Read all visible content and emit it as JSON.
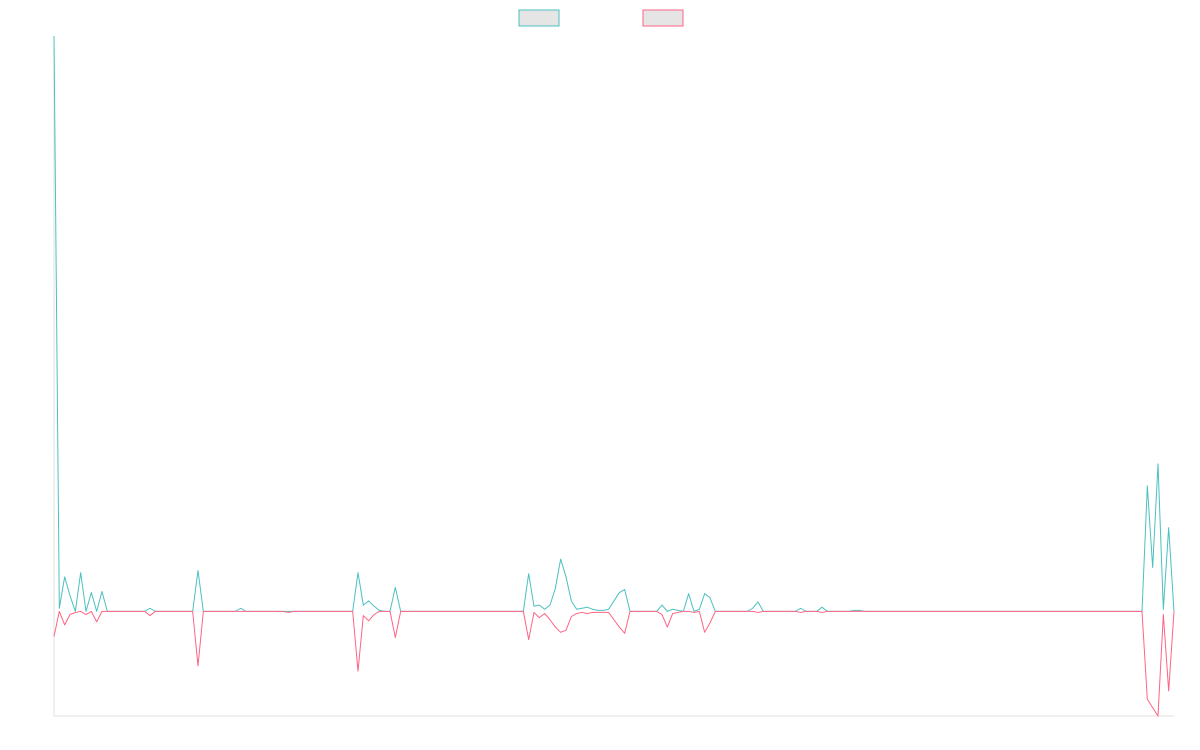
{
  "chart_data": {
    "type": "line",
    "categories": [
      null,
      null,
      null,
      null,
      null,
      null,
      null,
      null,
      null,
      null,
      null,
      null,
      null,
      null,
      null,
      null,
      null,
      null,
      null,
      null,
      null,
      null,
      null,
      null,
      null,
      null,
      null,
      null,
      null,
      null,
      null,
      null,
      null,
      null,
      null,
      null,
      null,
      null,
      null,
      null,
      null,
      null,
      null,
      null,
      null,
      null,
      null,
      null,
      null,
      null,
      null,
      null,
      null,
      null,
      null,
      null,
      null,
      null,
      null,
      null,
      null,
      null,
      null,
      null,
      null,
      null,
      null,
      null,
      null,
      null,
      null,
      null,
      null,
      null,
      null,
      null,
      null,
      null,
      null,
      null,
      null,
      null,
      null,
      null,
      null,
      null,
      null,
      null,
      null,
      null,
      null,
      null,
      null,
      null,
      null,
      null,
      null,
      null,
      null,
      null,
      null,
      null,
      null,
      null,
      null,
      null,
      null,
      null,
      null,
      null,
      null,
      null,
      null,
      null,
      null,
      null,
      null,
      null,
      null,
      null,
      null,
      null,
      null,
      null,
      null,
      null,
      null,
      null,
      null,
      null,
      null,
      null,
      null,
      null,
      null,
      null,
      null,
      null,
      null,
      null,
      null,
      null,
      null,
      null,
      null,
      null,
      null,
      null,
      null,
      null,
      null,
      null,
      null,
      null,
      null,
      null,
      null,
      null,
      null,
      null,
      null,
      null,
      null,
      null,
      null,
      null,
      null,
      null,
      null,
      null,
      null,
      null,
      null,
      null,
      null,
      null,
      null,
      null,
      null,
      null,
      null,
      null,
      null,
      null,
      null,
      null,
      null,
      null,
      null,
      null,
      null,
      null,
      null,
      null,
      null,
      null,
      null,
      null,
      null,
      null,
      null,
      null,
      null,
      null,
      null,
      null,
      null,
      null,
      null,
      null,
      null
    ],
    "series": [
      {
        "color": "#4bc0c0",
        "values": [
          5.5,
          0.03,
          0.33,
          0.15,
          0,
          0.37,
          0,
          0.18,
          0,
          0.19,
          0,
          0,
          0,
          0,
          0,
          0,
          0,
          0,
          0.03,
          0,
          0,
          0,
          0,
          0,
          0,
          0,
          0,
          0.39,
          0,
          0,
          0,
          0,
          0,
          0,
          0,
          0.03,
          0,
          0,
          0,
          0,
          0,
          0,
          0,
          0,
          0,
          0,
          0,
          0,
          0,
          0,
          0,
          0,
          0,
          0,
          0,
          0,
          0,
          0.37,
          0.06,
          0.1,
          0.05,
          0.01,
          0,
          0,
          0.23,
          0,
          0,
          0,
          0,
          0,
          0,
          0,
          0,
          0,
          0,
          0,
          0,
          0,
          0,
          0,
          0,
          0,
          0,
          0,
          0,
          0,
          0,
          0,
          0,
          0.36,
          0.05,
          0.06,
          0.02,
          0.06,
          0.22,
          0.5,
          0.33,
          0.1,
          0.02,
          0.03,
          0.04,
          0.02,
          0.01,
          0.01,
          0.02,
          0.1,
          0.18,
          0.21,
          0,
          0,
          0,
          0,
          0,
          0,
          0.06,
          0,
          0.02,
          0.01,
          0,
          0.17,
          0,
          0.02,
          0.17,
          0.13,
          0,
          0,
          0,
          0,
          0,
          0,
          0,
          0.03,
          0.09,
          0,
          0,
          0,
          0,
          0,
          0,
          0,
          0.03,
          0,
          0,
          0,
          0.04,
          0,
          0,
          0,
          0,
          0,
          0.01,
          0.01,
          0,
          0,
          0,
          0,
          0,
          0,
          0,
          0,
          0,
          0,
          0,
          0,
          0,
          0,
          0,
          0,
          0,
          0,
          0,
          0,
          0,
          0,
          0,
          0,
          0,
          0,
          0,
          0,
          0,
          0,
          0,
          0,
          0,
          0,
          0,
          0,
          0,
          0,
          0,
          0,
          0,
          0,
          0,
          0,
          0,
          0,
          0,
          0,
          0,
          0,
          0,
          0,
          0,
          1.2,
          0.42,
          1.41,
          0.02,
          0.8,
          0
        ]
      },
      {
        "color": "#ff6384",
        "values": [
          -0.24,
          0,
          -0.13,
          -0.03,
          -0.01,
          0,
          -0.03,
          0,
          -0.1,
          0,
          0,
          0,
          0,
          0,
          0,
          0,
          0,
          0,
          -0.04,
          0,
          0,
          0,
          0,
          0,
          0,
          0,
          0,
          -0.52,
          0,
          0,
          0,
          0,
          0,
          0,
          0,
          0,
          0,
          0,
          0,
          0,
          0,
          0,
          0,
          0,
          -0.01,
          0,
          0,
          0,
          0,
          0,
          0,
          0,
          0,
          0,
          0,
          0,
          0,
          -0.57,
          -0.04,
          -0.09,
          -0.03,
          0,
          0,
          0,
          -0.25,
          0,
          0,
          0,
          0,
          0,
          0,
          0,
          0,
          0,
          0,
          0,
          0,
          0,
          0,
          0,
          0,
          0,
          0,
          0,
          0,
          0,
          0,
          0,
          0,
          -0.27,
          -0.01,
          -0.06,
          -0.02,
          -0.08,
          -0.15,
          -0.2,
          -0.18,
          -0.05,
          -0.02,
          -0.01,
          -0.02,
          -0.01,
          -0.01,
          -0.01,
          -0.01,
          -0.08,
          -0.15,
          -0.21,
          0,
          0,
          0,
          0,
          0,
          0,
          -0.03,
          -0.15,
          -0.02,
          -0.01,
          0,
          0,
          -0.01,
          0,
          -0.2,
          -0.11,
          0,
          0,
          0,
          0,
          0,
          0,
          0,
          0,
          -0.01,
          0,
          0,
          0,
          0,
          0,
          0,
          0,
          -0.01,
          0,
          0,
          0,
          -0.01,
          0,
          0,
          0,
          0,
          0,
          0,
          0,
          0,
          0,
          0,
          0,
          0,
          0,
          0,
          0,
          0,
          0,
          0,
          0,
          0,
          0,
          0,
          0,
          0,
          0,
          0,
          0,
          0,
          0,
          0,
          0,
          0,
          0,
          0,
          0,
          0,
          0,
          0,
          0,
          0,
          0,
          0,
          0,
          0,
          0,
          0,
          0,
          0,
          0,
          0,
          0,
          0,
          0,
          0,
          0,
          0,
          0,
          0,
          0,
          0,
          -0.84,
          -0.92,
          -1,
          -0.03,
          -0.76,
          0
        ]
      }
    ],
    "ylim": [
      -1,
      5.5
    ],
    "grid": false,
    "legend": "top"
  }
}
